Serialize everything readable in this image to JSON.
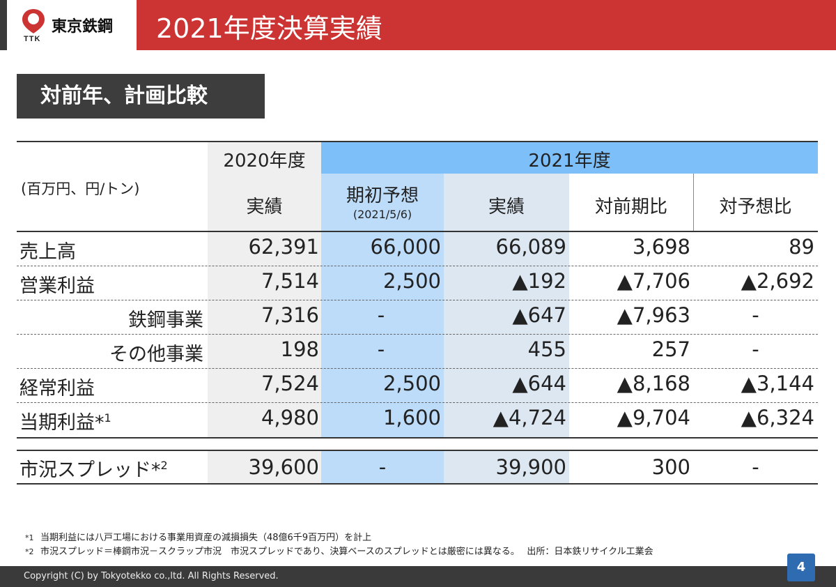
{
  "header": {
    "logo_mark_text": "TTK",
    "company_name": "東京鉄鋼",
    "title": "2021年度決算実績",
    "brand_color": "#cc3333"
  },
  "section_title": "対前年、計画比較",
  "table": {
    "unit": "(百万円、円/トン)",
    "group_2020": "2020年度",
    "group_2021": "2021年度",
    "col_2020_actual": "実績",
    "col_initial_forecast": "期初予想",
    "col_initial_forecast_date": "(2021/5/6)",
    "col_2021_actual": "実績",
    "col_yoy": "対前期比",
    "col_vs_forecast": "対予想比",
    "rows": [
      {
        "label": "売上高",
        "v2020": "62,391",
        "forecast": "66,000",
        "v2021": "66,089",
        "yoy": "3,698",
        "vs_forecast": "89"
      },
      {
        "label": "営業利益",
        "v2020": "7,514",
        "forecast": "2,500",
        "v2021": "▲192",
        "yoy": "▲7,706",
        "vs_forecast": "▲2,692"
      },
      {
        "label": "鉄鋼事業",
        "v2020": "7,316",
        "forecast": "-",
        "v2021": "▲647",
        "yoy": "▲7,963",
        "vs_forecast": "-"
      },
      {
        "label": "その他事業",
        "v2020": "198",
        "forecast": "-",
        "v2021": "455",
        "yoy": "257",
        "vs_forecast": "-"
      },
      {
        "label": "経常利益",
        "v2020": "7,524",
        "forecast": "2,500",
        "v2021": "▲644",
        "yoy": "▲8,168",
        "vs_forecast": "▲3,144"
      },
      {
        "label": "当期利益*",
        "label_sup": "1",
        "v2020": "4,980",
        "forecast": "1,600",
        "v2021": "▲4,724",
        "yoy": "▲9,704",
        "vs_forecast": "▲6,324"
      }
    ],
    "spread_row": {
      "label": "市況スプレッド*",
      "label_sup": "2",
      "v2020": "39,600",
      "forecast": "-",
      "v2021": "39,900",
      "yoy": "300",
      "vs_forecast": "-"
    }
  },
  "footnotes": [
    {
      "mark": "*1",
      "text": "当期利益には八戸工場における事業用資産の減損損失（48億6千9百万円）を計上"
    },
    {
      "mark": "*2",
      "text": "市況スプレッド＝棒鋼市況－スクラップ市況　市況スプレッドであり、決算ベースのスプレッドとは厳密には異なる。　 出所：日本鉄リサイクル工業会"
    }
  ],
  "footer": {
    "copyright": "Copyright (C) by Tokyotekko co.,ltd. All Rights Reserved.",
    "page_number": "4"
  }
}
